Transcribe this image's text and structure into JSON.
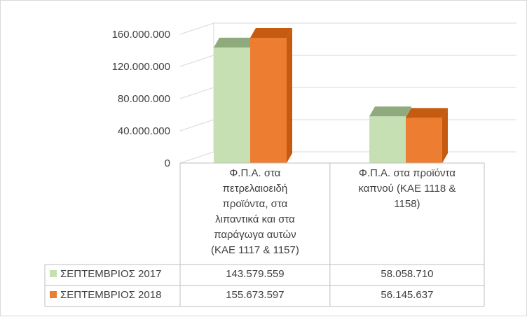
{
  "chart_data": {
    "type": "bar",
    "style": "3d-clustered-column-with-data-table",
    "categories": [
      "Φ.Π.Α. στα πετρελαιοειδή προϊόντα, στα λιπαντικά και στα παράγωγα αυτών (ΚΑΕ 1117 & 1157)",
      "Φ.Π.Α. στα προϊόντα καπνού (ΚΑΕ 1118 & 1158)"
    ],
    "category_lines": [
      [
        "Φ.Π.Α. στα",
        "πετρελαιοειδή",
        "προϊόντα, στα",
        "λιπαντικά και στα",
        "παράγωγα αυτών",
        "(ΚΑΕ 1117 & 1157)"
      ],
      [
        "Φ.Π.Α. στα προϊόντα",
        "καπνού (ΚΑΕ 1118 &",
        "1158)"
      ]
    ],
    "series": [
      {
        "name": "ΣΕΠΤΕΜΒΡΙΟΣ 2017",
        "values": [
          143579559,
          58058710
        ],
        "value_labels": [
          "143.579.559",
          "58.058.710"
        ],
        "color": "#c6e0b4",
        "top_color": "#8faa7c"
      },
      {
        "name": "ΣΕΠΤΕΜΒΡΙΟΣ 2018",
        "values": [
          155673597,
          56145637
        ],
        "value_labels": [
          "155.673.597",
          "56.145.637"
        ],
        "color": "#ed7d31",
        "top_color": "#c55a11"
      }
    ],
    "y_ticks": [
      0,
      40000000,
      80000000,
      120000000,
      160000000
    ],
    "y_tick_labels": [
      "0",
      "40.000.000",
      "80.000.000",
      "120.000.000",
      "160.000.000"
    ],
    "ylim": [
      0,
      160000000
    ],
    "grid": true,
    "gridline_color": "#d9d9d9",
    "title": "",
    "xlabel": "",
    "ylabel": "",
    "legend": "data-table-keys"
  }
}
